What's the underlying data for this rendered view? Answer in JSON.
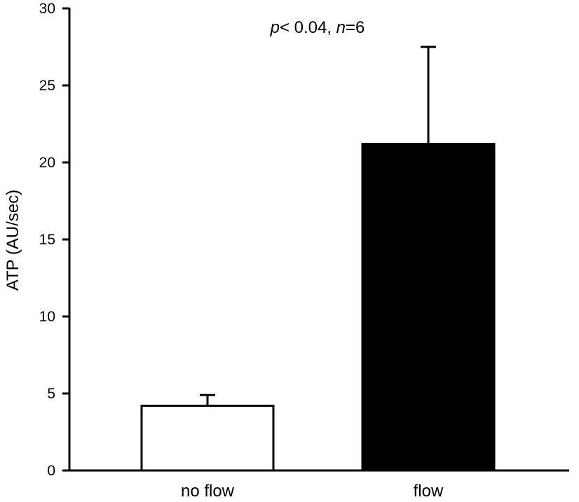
{
  "chart_data": {
    "type": "bar",
    "categories": [
      "no flow",
      "flow"
    ],
    "values": [
      4.2,
      21.2
    ],
    "errors": [
      0.7,
      6.3
    ],
    "bar_fills": [
      "#ffffff",
      "#000000"
    ],
    "ylabel": "ATP (AU/sec)",
    "xlabel": "",
    "ylim": [
      0,
      30
    ],
    "yticks": [
      0,
      5,
      10,
      15,
      20,
      25,
      30
    ],
    "grid": false,
    "annotation": {
      "p_symbol": "p",
      "p_text": "< 0.04, ",
      "n_symbol": "n",
      "n_text": "=6"
    }
  }
}
